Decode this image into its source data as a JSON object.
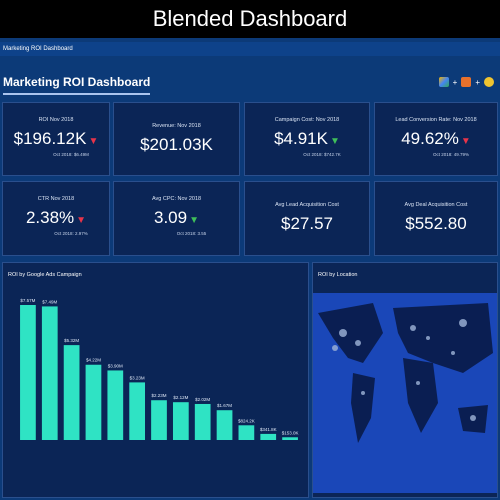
{
  "header": {
    "banner": "Blended Dashboard",
    "tab": "Marketing ROI Dashboard",
    "title": "Marketing ROI Dashboard"
  },
  "kpis": [
    {
      "label": "ROI Nov 2018",
      "value": "$196.12K",
      "trend": "down",
      "trend_color": "#e8344a",
      "compare": "Oct 2018: $6.49M"
    },
    {
      "label": "Revenue: Nov 2018",
      "value": "$201.03K"
    },
    {
      "label": "Campaign Cost: Nov 2018",
      "value": "$4.91K",
      "trend": "down",
      "trend_color": "#3fbf5a",
      "compare": "Oct 2018: $742.7K"
    },
    {
      "label": "Lead Conversion Rate: Nov 2018",
      "value": "49.62%",
      "trend": "down",
      "trend_color": "#e8344a",
      "compare": "Oct 2018: 49.79%"
    },
    {
      "label": "CTR Nov 2018",
      "value": "2.38%",
      "trend": "down",
      "trend_color": "#e8344a",
      "compare": "Oct 2018: 2.97%"
    },
    {
      "label": "Avg CPC: Nov 2018",
      "value": "3.09",
      "trend": "down",
      "trend_color": "#3fbf5a",
      "compare": "Oct 2018: 3.55"
    },
    {
      "label": "Avg Lead Acquisition Cost",
      "value": "$27.57"
    },
    {
      "label": "Avg Deal Acquisition Cost",
      "value": "$552.80"
    }
  ],
  "chart_data": {
    "type": "bar",
    "title": "ROI by Google Ads Campaign",
    "categories": [
      null,
      null,
      null,
      null,
      null,
      null,
      null,
      null,
      null,
      null,
      null,
      null,
      null
    ],
    "values": [
      7570000,
      7490000,
      5320000,
      4220000,
      3900000,
      3230000,
      2230000,
      2120000,
      2020000,
      1670000,
      824200,
      341800,
      153000
    ],
    "value_labels": [
      "$7.57M",
      "$7.49M",
      "$5.32M",
      "$4.22M",
      "$3.90M",
      "$3.23M",
      "$2.23M",
      "$2.12M",
      "$2.02M",
      "$1.67M",
      "$824.2K",
      "$341.8K",
      "$153.0K"
    ],
    "color": "#2fe3c4"
  },
  "map": {
    "title": "ROI by Location"
  }
}
